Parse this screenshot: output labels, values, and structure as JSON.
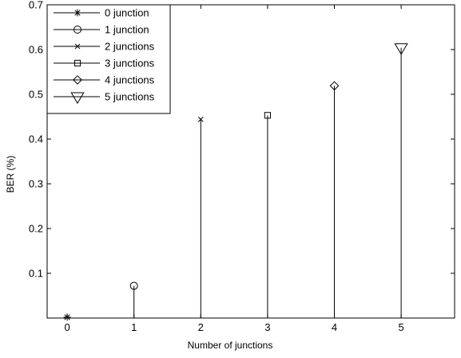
{
  "chart_data": {
    "type": "stem",
    "xlabel": "Number of  junctions",
    "ylabel": "BER (%)",
    "xlim": [
      -0.3,
      5.8
    ],
    "ylim": [
      0,
      0.7
    ],
    "x_ticks": [
      "0",
      "1",
      "2",
      "3",
      "4",
      "5"
    ],
    "y_ticks": [
      "0.1",
      "0.2",
      "0.3",
      "0.4",
      "0.5",
      "0.6",
      "0.7"
    ],
    "grid": false,
    "legend_position": "top-left",
    "series": [
      {
        "name": "0 junction",
        "marker": "asterisk",
        "x": 0,
        "value": 0.002
      },
      {
        "name": "1 junction",
        "marker": "circle",
        "x": 1,
        "value": 0.072
      },
      {
        "name": "2 junctions",
        "marker": "cross",
        "x": 2,
        "value": 0.444
      },
      {
        "name": "3 junctions",
        "marker": "square",
        "x": 3,
        "value": 0.453
      },
      {
        "name": "4 junctions",
        "marker": "diamond",
        "x": 4,
        "value": 0.519
      },
      {
        "name": "5 junctions",
        "marker": "triangle-down",
        "x": 5,
        "value": 0.604
      }
    ],
    "colors": {
      "axis": "#000000",
      "stem": "#000000",
      "marker": "#000000",
      "background": "#ffffff"
    }
  }
}
